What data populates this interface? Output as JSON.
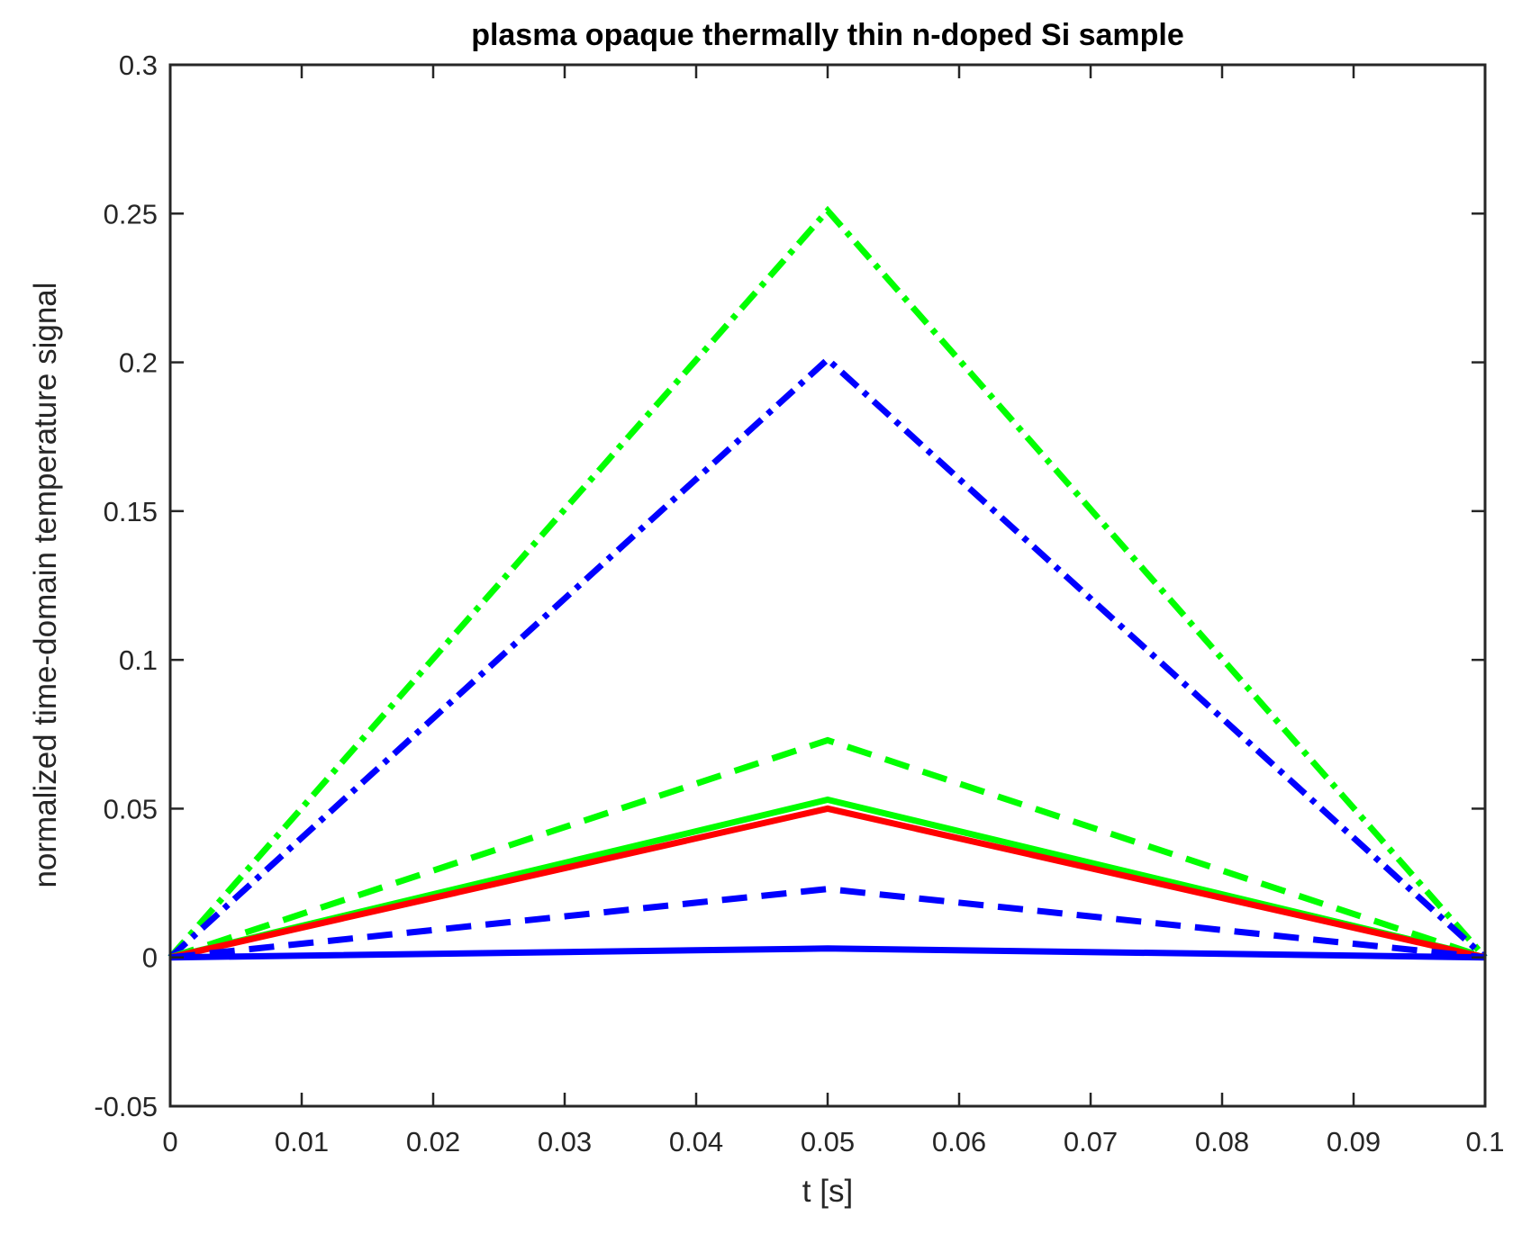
{
  "chart_data": {
    "type": "line",
    "title": "plasma opaque thermally thin n-doped Si sample",
    "xlabel": "t [s]",
    "ylabel": "normalized time-domain temperature signal",
    "xlim": [
      0,
      0.1
    ],
    "ylim": [
      -0.05,
      0.3
    ],
    "xticks": [
      0,
      0.01,
      0.02,
      0.03,
      0.04,
      0.05,
      0.06,
      0.07,
      0.08,
      0.09,
      0.1
    ],
    "xtick_labels": [
      "0",
      "0.01",
      "0.02",
      "0.03",
      "0.04",
      "0.05",
      "0.06",
      "0.07",
      "0.08",
      "0.09",
      "0.1"
    ],
    "yticks": [
      -0.05,
      0,
      0.05,
      0.1,
      0.15,
      0.2,
      0.25,
      0.3
    ],
    "ytick_labels": [
      "-0.05",
      "0",
      "0.05",
      "0.1",
      "0.15",
      "0.2",
      "0.25",
      "0.3"
    ],
    "grid": false,
    "legend": null,
    "x": [
      0,
      0.05,
      0.1
    ],
    "series": [
      {
        "name": "green dash-dot",
        "color": "#00ff00",
        "style": "dashdot",
        "values": [
          0,
          0.251,
          0
        ]
      },
      {
        "name": "blue dash-dot",
        "color": "#0000ff",
        "style": "dashdot",
        "values": [
          0,
          0.201,
          0
        ]
      },
      {
        "name": "green dashed",
        "color": "#00ff00",
        "style": "dashed",
        "values": [
          0,
          0.073,
          0
        ]
      },
      {
        "name": "green solid",
        "color": "#00ff00",
        "style": "solid",
        "values": [
          0,
          0.053,
          0
        ]
      },
      {
        "name": "red solid",
        "color": "#ff0000",
        "style": "solid",
        "values": [
          0,
          0.05,
          0
        ]
      },
      {
        "name": "blue dashed",
        "color": "#0000ff",
        "style": "dashed",
        "values": [
          0,
          0.023,
          0
        ]
      },
      {
        "name": "blue solid",
        "color": "#0000ff",
        "style": "solid",
        "values": [
          0,
          0.003,
          0
        ]
      }
    ]
  },
  "colors": {
    "axis": "#262626",
    "green": "#00ff00",
    "blue": "#0000ff",
    "red": "#ff0000"
  }
}
